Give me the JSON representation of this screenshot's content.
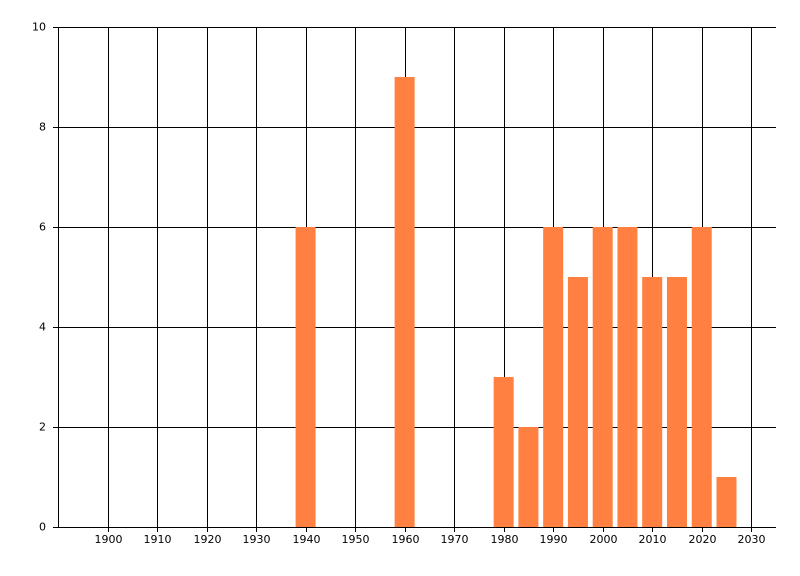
{
  "chart_data": {
    "type": "bar",
    "x": [
      1940,
      1960,
      1980,
      1985,
      1990,
      1995,
      2000,
      2005,
      2010,
      2015,
      2020,
      2025
    ],
    "values": [
      6,
      9,
      3,
      2,
      6,
      5,
      6,
      6,
      5,
      5,
      6,
      1
    ],
    "color": "#ff8040",
    "xlim": [
      1890,
      2035
    ],
    "xticks": [
      1900,
      1910,
      1920,
      1930,
      1940,
      1950,
      1960,
      1970,
      1980,
      1990,
      2000,
      2010,
      2020,
      2030
    ],
    "ylim": [
      0,
      10
    ],
    "yticks": [
      0,
      2,
      4,
      6,
      8,
      10
    ],
    "grid": true
  }
}
